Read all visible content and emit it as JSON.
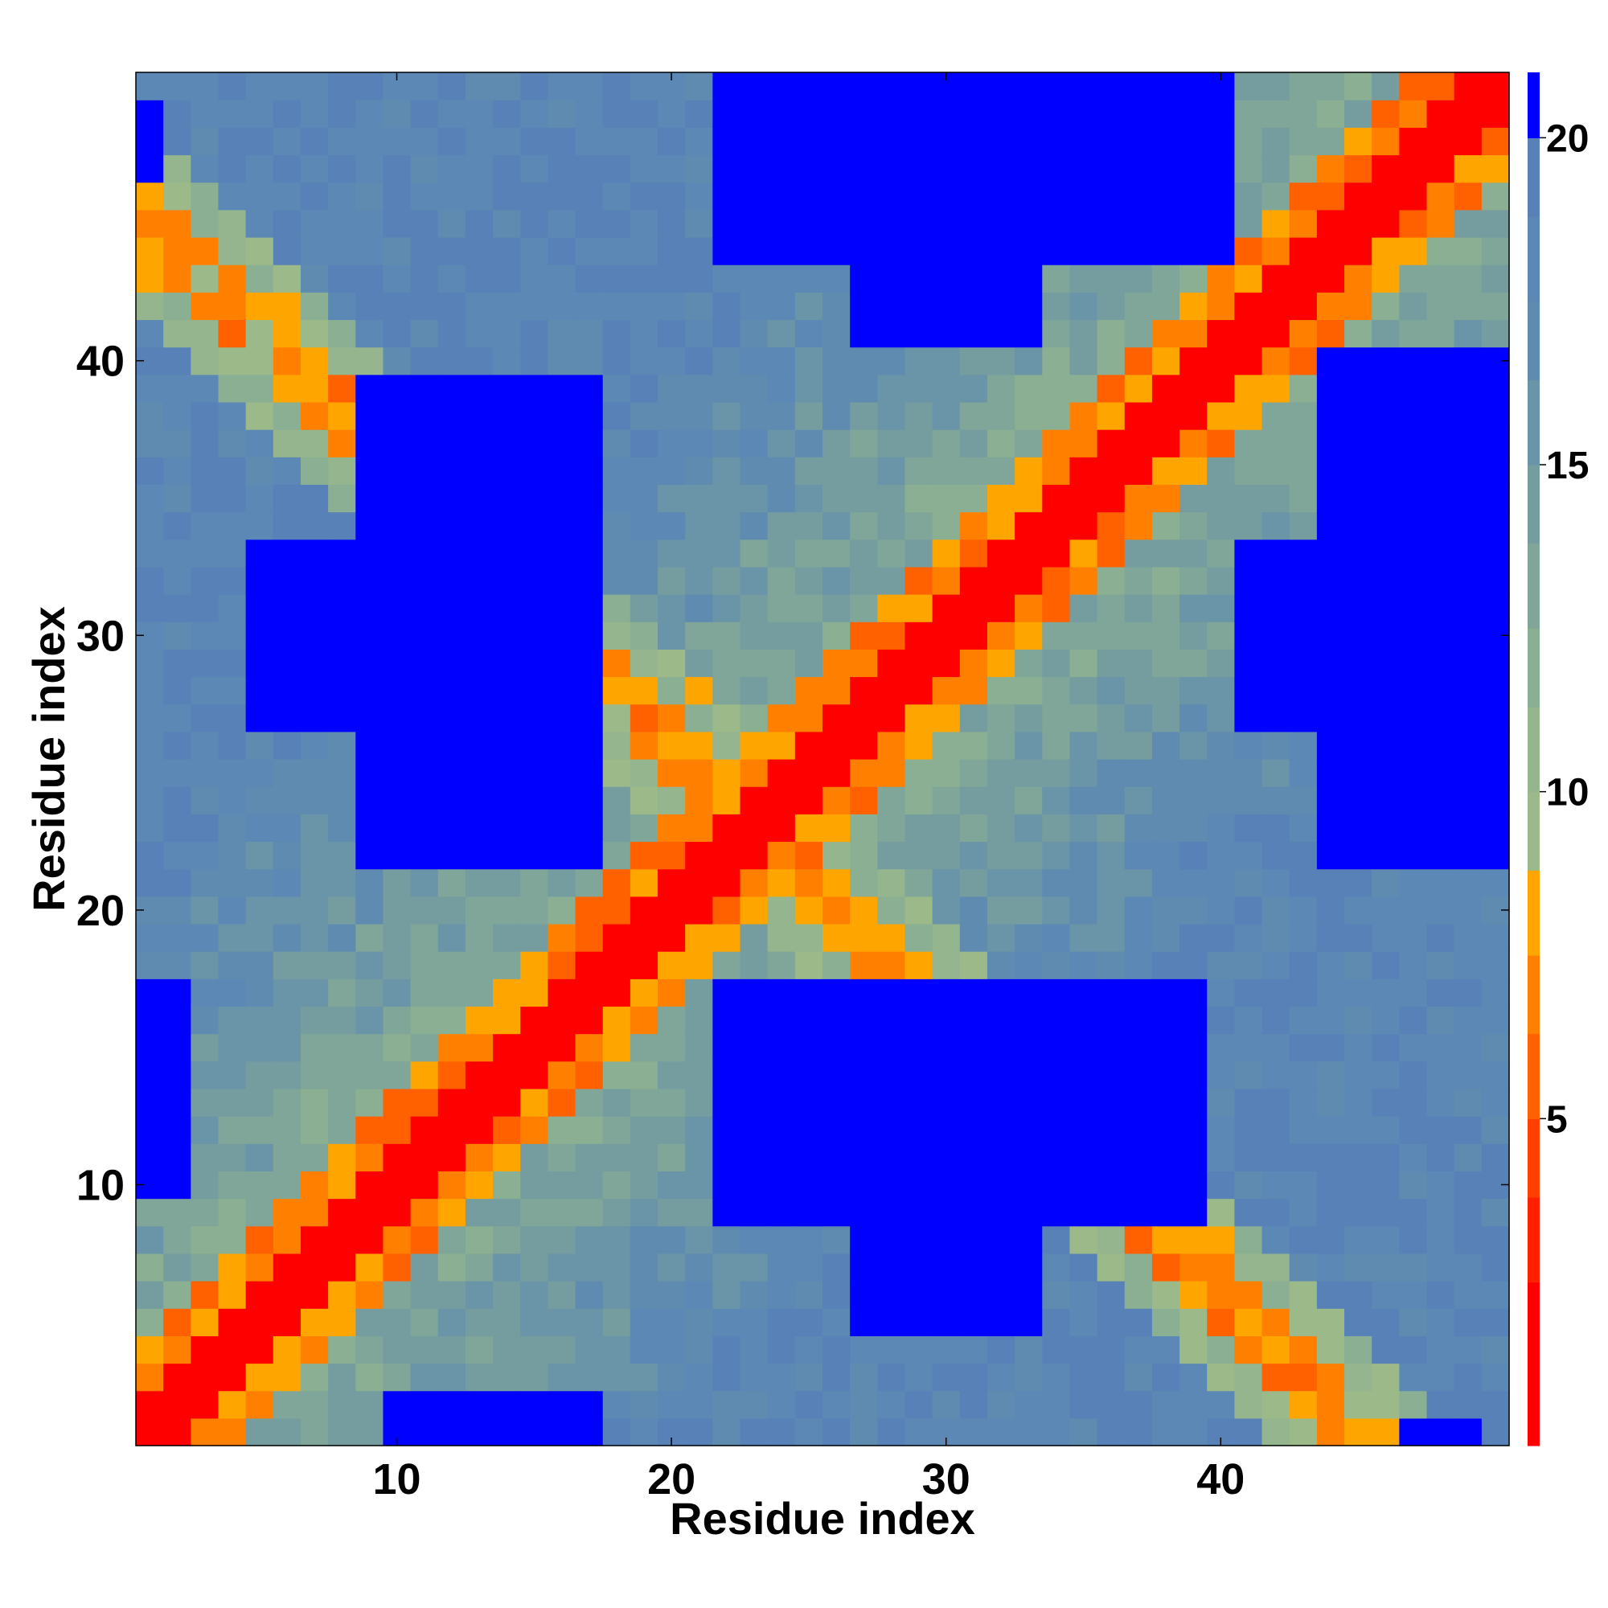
{
  "chart_data": {
    "type": "heatmap",
    "title": "",
    "xlabel": "Residue index",
    "ylabel": "Residue index",
    "x_range": [
      0.5,
      50.5
    ],
    "y_range": [
      0.5,
      50.5
    ],
    "x_ticks": [
      10,
      20,
      30,
      40
    ],
    "y_ticks": [
      10,
      20,
      30,
      40
    ],
    "colorbar": {
      "range": [
        0,
        21
      ],
      "ticks": [
        5,
        10,
        15,
        20
      ],
      "bins": [
        {
          "upper": 1.2,
          "color": "#ff0000"
        },
        {
          "upper": 2.5,
          "color": "#ff0000"
        },
        {
          "upper": 3.8,
          "color": "#ff2000"
        },
        {
          "upper": 5.0,
          "color": "#ff4000"
        },
        {
          "upper": 6.3,
          "color": "#ff6000"
        },
        {
          "upper": 7.5,
          "color": "#ff8000"
        },
        {
          "upper": 8.8,
          "color": "#ffa500"
        },
        {
          "upper": 10.0,
          "color": "#9cb98a"
        },
        {
          "upper": 11.3,
          "color": "#94b58d"
        },
        {
          "upper": 12.5,
          "color": "#8aaf92"
        },
        {
          "upper": 13.8,
          "color": "#7fa698"
        },
        {
          "upper": 15.0,
          "color": "#759da0"
        },
        {
          "upper": 16.3,
          "color": "#6a94a8"
        },
        {
          "upper": 17.5,
          "color": "#608bb0"
        },
        {
          "upper": 18.8,
          "color": "#5b88b5"
        },
        {
          "upper": 20.0,
          "color": "#5882b7"
        },
        {
          "upper": 21.0,
          "color": "#0000ff"
        }
      ]
    },
    "matrix_size": 50,
    "values_note": "",
    "band": {
      "diagonal_width": 1.5,
      "blue_blocks": [
        {
          "x": [
            8.5,
            17.5
          ],
          "y": [
            21.5,
            35.5
          ]
        },
        {
          "x": [
            10.5,
            12.5
          ],
          "y": [
            36.5,
            39.5
          ]
        },
        {
          "x": [
            21.5,
            40.5
          ],
          "y": [
            43.5,
            50.5
          ]
        },
        {
          "x": [
            26.5,
            33.5
          ],
          "y": [
            40.5,
            43.5
          ]
        },
        {
          "x": [
            43.5,
            50.5
          ],
          "y": [
            21.5,
            39.5
          ]
        },
        {
          "x": [
            21.5,
            39.5
          ],
          "y": [
            8.5,
            17.5
          ]
        },
        {
          "x": [
            26.5,
            33.5
          ],
          "y": [
            4.5,
            8.5
          ]
        },
        {
          "x": [
            9.5,
            17.5
          ],
          "y": [
            0.5,
            2.5
          ]
        },
        {
          "x": [
            0.5,
            2.5
          ],
          "y": [
            10.5,
            17.5
          ]
        },
        {
          "x": [
            0.5,
            1.5
          ],
          "y": [
            46.5,
            49.5
          ]
        }
      ]
    }
  }
}
